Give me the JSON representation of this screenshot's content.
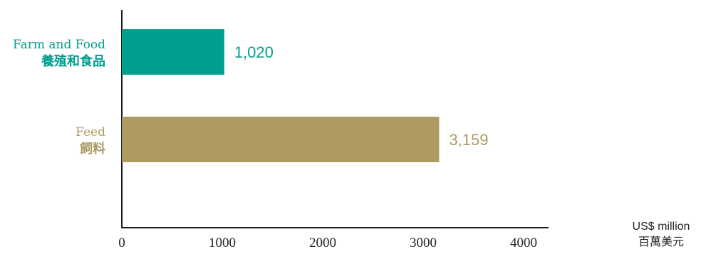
{
  "chart_data": {
    "type": "bar",
    "orientation": "horizontal",
    "categories": [
      {
        "en": "Farm and Food",
        "zh": "養殖和食品"
      },
      {
        "en": "Feed",
        "zh": "飼料"
      }
    ],
    "values": [
      1020,
      3159
    ],
    "value_labels": [
      "1,020",
      "3,159"
    ],
    "colors": [
      "#009e8f",
      "#ad9b63"
    ],
    "xlim": [
      0,
      4000
    ],
    "xticks": [
      0,
      1000,
      2000,
      3000,
      4000
    ],
    "xtick_labels": [
      "0",
      "1000",
      "2000",
      "3000",
      "4000"
    ],
    "unit": {
      "en": "US$ million",
      "zh": "百萬美元"
    },
    "grid": false
  }
}
